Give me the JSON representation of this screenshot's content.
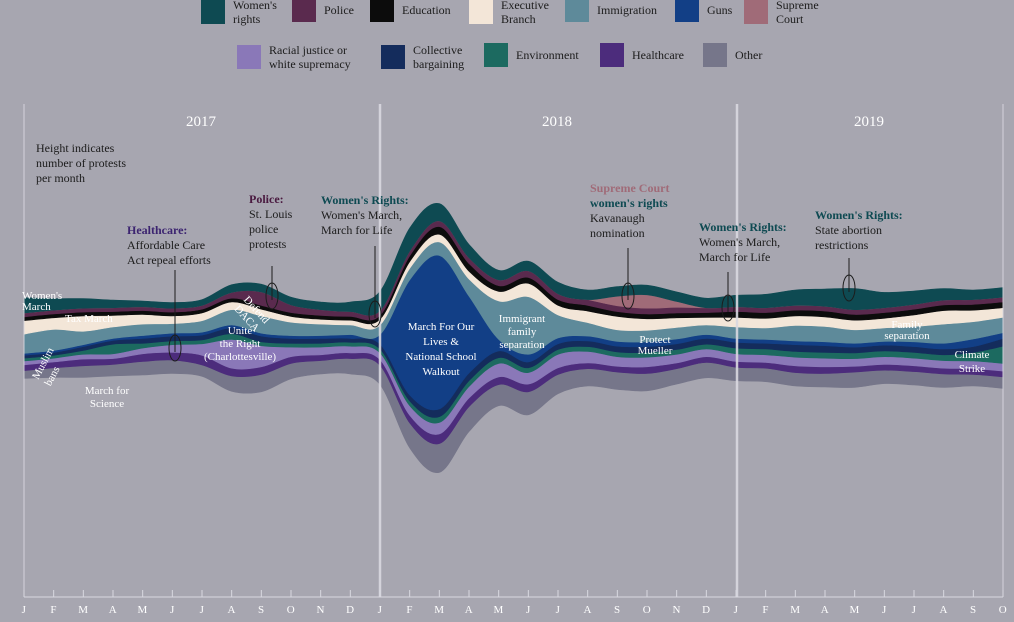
{
  "legend": {
    "row1": [
      {
        "label_lines": [
          "Women's",
          "rights"
        ],
        "color": "#0e4a52"
      },
      {
        "label_lines": [
          "Police"
        ],
        "color": "#5a2a4e"
      },
      {
        "label_lines": [
          "Education"
        ],
        "color": "#0c0c0c"
      },
      {
        "label_lines": [
          "Executive",
          "Branch"
        ],
        "color": "#f3e6d8"
      },
      {
        "label_lines": [
          "Immigration"
        ],
        "color": "#5e8a9a"
      },
      {
        "label_lines": [
          "Guns"
        ],
        "color": "#123f86"
      },
      {
        "label_lines": [
          "Supreme",
          "Court"
        ],
        "color": "#a06b78"
      }
    ],
    "row2": [
      {
        "label_lines": [
          "Racial justice or",
          "white supremacy"
        ],
        "color": "#8a78b8"
      },
      {
        "label_lines": [
          "Collective",
          "bargaining"
        ],
        "color": "#142c5c"
      },
      {
        "label_lines": [
          "Environment"
        ],
        "color": "#1c6a60"
      },
      {
        "label_lines": [
          "Healthcare"
        ],
        "color": "#4c2c7c"
      },
      {
        "label_lines": [
          "Other"
        ],
        "color": "#76768a"
      }
    ]
  },
  "chart_data": {
    "type": "area",
    "subtype": "streamgraph",
    "description_lines": [
      "Height indicates",
      "number of protests",
      "per month"
    ],
    "years": [
      "2017",
      "2018",
      "2019"
    ],
    "x": [
      "J",
      "F",
      "M",
      "A",
      "M",
      "J",
      "J",
      "A",
      "S",
      "O",
      "N",
      "D",
      "J",
      "F",
      "M",
      "A",
      "M",
      "J",
      "J",
      "A",
      "S",
      "O",
      "N",
      "D",
      "J",
      "F",
      "M",
      "A",
      "M",
      "J",
      "J",
      "A",
      "S",
      "O"
    ],
    "series": [
      {
        "name": "Other",
        "color": "#76768a",
        "values": [
          8,
          10,
          12,
          12,
          14,
          14,
          12,
          16,
          18,
          16,
          14,
          16,
          20,
          26,
          30,
          26,
          22,
          24,
          20,
          18,
          18,
          18,
          16,
          16,
          14,
          14,
          14,
          14,
          16,
          14,
          14,
          14,
          12,
          12
        ]
      },
      {
        "name": "Healthcare",
        "color": "#4c2c7c",
        "values": [
          6,
          6,
          7,
          6,
          8,
          8,
          10,
          8,
          8,
          7,
          6,
          6,
          6,
          8,
          10,
          9,
          8,
          8,
          7,
          6,
          6,
          7,
          6,
          6,
          6,
          6,
          7,
          7,
          6,
          6,
          6,
          6,
          6,
          6
        ]
      },
      {
        "name": "Racial justice or white supremacy",
        "color": "#8a78b8",
        "values": [
          4,
          4,
          5,
          5,
          6,
          8,
          12,
          30,
          22,
          10,
          8,
          7,
          7,
          10,
          12,
          12,
          14,
          12,
          14,
          12,
          10,
          10,
          9,
          8,
          8,
          8,
          9,
          9,
          8,
          8,
          8,
          8,
          8,
          8
        ]
      },
      {
        "name": "Environment",
        "color": "#1c6a60",
        "values": [
          3,
          3,
          4,
          10,
          5,
          4,
          4,
          6,
          4,
          4,
          4,
          4,
          4,
          5,
          6,
          6,
          6,
          5,
          5,
          5,
          5,
          5,
          5,
          5,
          6,
          6,
          6,
          6,
          6,
          6,
          6,
          6,
          9,
          18
        ]
      },
      {
        "name": "Collective bargaining",
        "color": "#142c5c",
        "values": [
          3,
          3,
          4,
          4,
          5,
          5,
          5,
          6,
          6,
          5,
          5,
          4,
          5,
          6,
          8,
          8,
          7,
          6,
          6,
          6,
          6,
          6,
          6,
          6,
          6,
          6,
          7,
          7,
          6,
          6,
          6,
          6,
          6,
          8
        ]
      },
      {
        "name": "Guns",
        "color": "#123f86",
        "values": [
          2,
          2,
          2,
          2,
          3,
          3,
          3,
          3,
          3,
          3,
          3,
          4,
          10,
          120,
          160,
          80,
          12,
          8,
          6,
          5,
          5,
          5,
          5,
          4,
          4,
          4,
          4,
          4,
          4,
          4,
          5,
          6,
          8,
          6
        ]
      },
      {
        "name": "Immigration",
        "color": "#5e8a9a",
        "values": [
          20,
          22,
          14,
          12,
          12,
          10,
          12,
          16,
          18,
          14,
          12,
          10,
          10,
          12,
          14,
          18,
          40,
          60,
          24,
          14,
          12,
          12,
          12,
          10,
          12,
          12,
          16,
          16,
          14,
          14,
          16,
          20,
          18,
          16
        ]
      },
      {
        "name": "Executive Branch",
        "color": "#f3e6d8",
        "values": [
          14,
          12,
          16,
          12,
          10,
          8,
          8,
          8,
          7,
          6,
          5,
          5,
          6,
          7,
          8,
          8,
          10,
          14,
          10,
          12,
          14,
          12,
          10,
          8,
          10,
          10,
          10,
          10,
          10,
          10,
          12,
          14,
          12,
          10
        ]
      },
      {
        "name": "Education",
        "color": "#0c0c0c",
        "values": [
          4,
          4,
          4,
          4,
          4,
          4,
          4,
          4,
          4,
          4,
          4,
          4,
          4,
          6,
          8,
          8,
          6,
          6,
          6,
          6,
          5,
          5,
          5,
          5,
          6,
          6,
          6,
          6,
          6,
          6,
          6,
          6,
          6,
          6
        ]
      },
      {
        "name": "Police",
        "color": "#5a2a4e",
        "values": [
          4,
          4,
          4,
          4,
          4,
          4,
          4,
          6,
          14,
          8,
          6,
          5,
          5,
          5,
          6,
          6,
          6,
          7,
          6,
          6,
          6,
          6,
          6,
          5,
          5,
          5,
          5,
          5,
          5,
          5,
          5,
          5,
          5,
          5
        ]
      },
      {
        "name": "Supreme Court",
        "color": "#a06b78",
        "values": [
          0,
          0,
          0,
          0,
          0,
          0,
          0,
          0,
          0,
          0,
          0,
          0,
          0,
          0,
          0,
          0,
          0,
          0,
          0,
          0,
          10,
          14,
          6,
          0,
          0,
          0,
          0,
          0,
          0,
          0,
          0,
          0,
          0,
          0
        ]
      },
      {
        "name": "Women's rights",
        "color": "#0e4a52",
        "values": [
          16,
          12,
          10,
          8,
          6,
          6,
          6,
          8,
          8,
          8,
          8,
          10,
          20,
          24,
          18,
          14,
          10,
          10,
          12,
          10,
          10,
          10,
          10,
          10,
          12,
          14,
          16,
          18,
          22,
          16,
          14,
          12,
          10,
          10
        ]
      }
    ],
    "annotations": [
      {
        "head": "Healthcare:",
        "head_color": "#3c2470",
        "body": [
          "Affordable Care",
          "Act repeal efforts"
        ]
      },
      {
        "head": "Police:",
        "head_color": "#4a1a40",
        "body": [
          "St. Louis",
          "police",
          "protests"
        ]
      },
      {
        "head": "Women's Rights:",
        "head_color": "#0e4a52",
        "body": [
          "Women's March,",
          "March for Life"
        ]
      },
      {
        "head": "Supreme Court",
        "head_color": "#a06b78",
        "body2_head": "women's rights",
        "body2_color": "#0e4a52",
        "body": [
          "Kavanaugh",
          "nomination"
        ]
      },
      {
        "head": "Women's Rights:",
        "head_color": "#0e4a52",
        "body": [
          "Women's March,",
          "March for Life"
        ]
      },
      {
        "head": "Women's Rights:",
        "head_color": "#0e4a52",
        "body": [
          "State abortion",
          "restrictions"
        ]
      }
    ],
    "inside_labels": [
      {
        "lines": [
          "Women's",
          "March"
        ]
      },
      {
        "lines": [
          "Tax March"
        ]
      },
      {
        "lines": [
          "Muslim",
          "bans"
        ]
      },
      {
        "lines": [
          "March for",
          "Science"
        ]
      },
      {
        "lines": [
          "Unite",
          "the Right",
          "(Charlottesville)"
        ]
      },
      {
        "lines": [
          "Defend",
          "DACA"
        ]
      },
      {
        "lines": [
          "March For Our",
          "Lives &",
          "National School",
          "Walkout"
        ]
      },
      {
        "lines": [
          "Immigrant",
          "family",
          "separation"
        ]
      },
      {
        "lines": [
          "Protect",
          "Mueller"
        ]
      },
      {
        "lines": [
          "Family",
          "separation"
        ]
      },
      {
        "lines": [
          "Climate",
          "Strike"
        ]
      }
    ]
  }
}
